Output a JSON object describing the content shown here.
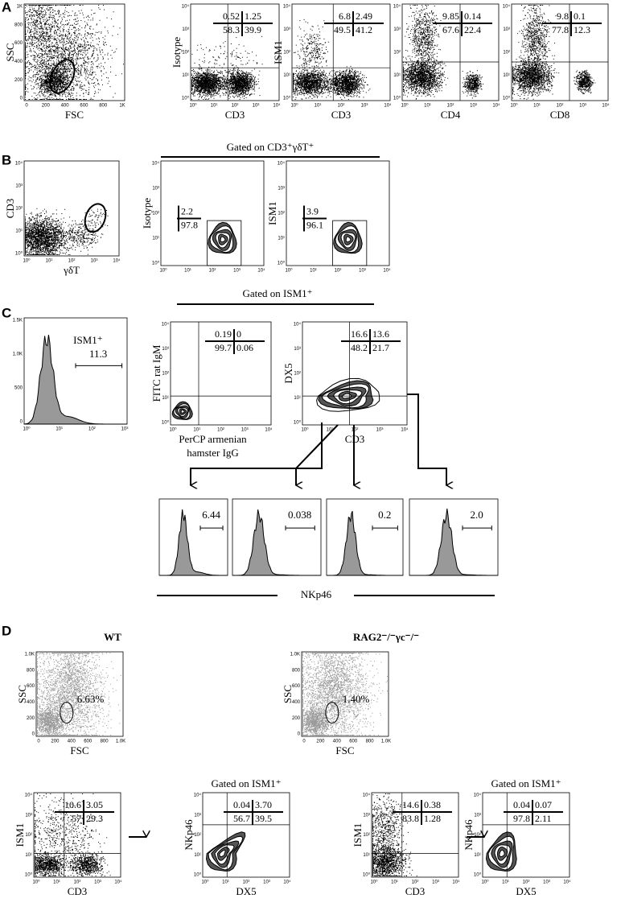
{
  "panel_letters": [
    "A",
    "B",
    "C",
    "D"
  ],
  "tick_labels": {
    "log": [
      "10⁰",
      "10¹",
      "10²",
      "10³",
      "10⁴"
    ],
    "log_short": [
      "10⁰",
      "10¹",
      "10²",
      "10³"
    ],
    "linear": [
      "0",
      "200",
      "400",
      "600",
      "800",
      "1K"
    ],
    "linear_k": [
      "0",
      "200",
      "400",
      "600",
      "800",
      "1.0K"
    ],
    "hist_y": [
      "0",
      "500",
      "1.0K",
      "1.5K"
    ]
  },
  "panel_a": {
    "plots": [
      {
        "y_label": "SSC",
        "x_label": "FSC"
      },
      {
        "y_label": "Isotype",
        "x_label": "CD3",
        "quadrants": [
          "0.52",
          "1.25",
          "58.3",
          "39.9"
        ]
      },
      {
        "y_label": "ISM1",
        "x_label": "CD3",
        "quadrants": [
          "6.8",
          "2.49",
          "49.5",
          "41.2"
        ]
      },
      {
        "x_label": "CD4",
        "quadrants": [
          "9.85",
          "0.14",
          "67.6",
          "22.4"
        ]
      },
      {
        "x_label": "CD8",
        "quadrants": [
          "9.8",
          "0.1",
          "77.8",
          "12.3"
        ]
      }
    ]
  },
  "panel_b": {
    "header": "Gated on CD3⁺γδT⁺",
    "plots": [
      {
        "y_label": "CD3",
        "x_label": "γδT"
      },
      {
        "y_label": "Isotype",
        "gate": [
          "2.2",
          "97.8"
        ]
      },
      {
        "y_label": "ISM1",
        "gate": [
          "3.9",
          "96.1"
        ]
      }
    ]
  },
  "panel_c": {
    "histogram": {
      "gate_label": "ISM1⁺",
      "value": "11.3"
    },
    "header": "Gated on ISM1⁺",
    "plots": [
      {
        "y_label": "FITC rat IgM",
        "x_label_lines": [
          "PerCP armenian",
          "hamster IgG"
        ],
        "quadrants": [
          "0.19",
          "0",
          "99.7",
          "0.06"
        ]
      },
      {
        "y_label": "DX5",
        "x_label": "CD3",
        "quadrants": [
          "16.6",
          "13.6",
          "48.2",
          "21.7"
        ]
      }
    ],
    "nkp46_histograms": [
      "6.44",
      "0.038",
      "0.2",
      "2.0"
    ],
    "x_label": "NKp46"
  },
  "panel_d": {
    "groups": [
      {
        "title": "WT",
        "scatter": {
          "y_label": "SSC",
          "x_label": "FSC",
          "gate": "6.63%"
        },
        "plots": [
          {
            "y_label": "ISM1",
            "x_label": "CD3",
            "quadrants": [
              "10.6",
              "3.05",
              "57",
              "29.3"
            ]
          },
          {
            "header": "Gated on ISM1⁺",
            "y_label": "NKp46",
            "x_label": "DX5",
            "quadrants": [
              "0.04",
              "3.70",
              "56.7",
              "39.5"
            ]
          }
        ]
      },
      {
        "title": "RAG2⁻/⁻γc⁻/⁻",
        "scatter": {
          "y_label": "SSC",
          "x_label": "FSC",
          "gate": "1.40%"
        },
        "plots": [
          {
            "y_label": "ISM1",
            "x_label": "CD3",
            "quadrants": [
              "14.6",
              "0.38",
              "83.8",
              "1.28"
            ]
          },
          {
            "header": "Gated on ISM1⁺",
            "y_label": "NKp46",
            "x_label": "DX5",
            "quadrants": [
              "0.04",
              "0.07",
              "97.8",
              "2.11"
            ]
          }
        ]
      }
    ]
  }
}
